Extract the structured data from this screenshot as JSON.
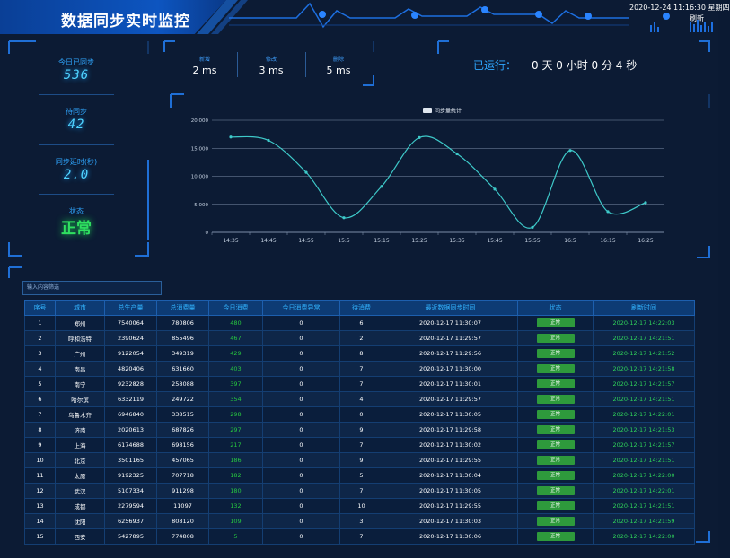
{
  "header": {
    "title": "数据同步实时监控",
    "datetime": "2020-12-24 11:16:30 星期四",
    "refresh_label": "刷新"
  },
  "stats": {
    "synced_today_label": "今日已同步",
    "synced_today_value": "536",
    "pending_label": "待同步",
    "pending_value": "42",
    "delay_label": "同步延时(秒)",
    "delay_value": "2.0",
    "status_label": "状态",
    "status_value": "正常"
  },
  "timing": {
    "items": [
      {
        "label": "新增",
        "value": "2 ms"
      },
      {
        "label": "修改",
        "value": "3 ms"
      },
      {
        "label": "删除",
        "value": "5 ms"
      }
    ]
  },
  "runtime": {
    "label": "已运行：",
    "value": "0 天 0 小时 0 分 4 秒"
  },
  "chart_data": {
    "type": "line",
    "title": "",
    "xlabel": "",
    "ylabel": "",
    "categories": [
      "14:35",
      "14:45",
      "14:55",
      "15:5",
      "15:15",
      "15:25",
      "15:35",
      "15:45",
      "15:55",
      "16:5",
      "16:15",
      "16:25"
    ],
    "ylim": [
      0,
      20000
    ],
    "yticks": [
      "0",
      "5,000",
      "10,000",
      "15,000",
      "20,000"
    ],
    "series": [
      {
        "name": "同步量统计",
        "values": [
          17000,
          16400,
          10700,
          2600,
          8200,
          16900,
          14000,
          7700,
          900,
          14600,
          3700,
          5300
        ]
      }
    ],
    "grid": true,
    "legend": "top-center",
    "colors": {
      "line": "#3ec9c9",
      "grid": "#7c8ea8",
      "axis_text": "#c7d3e3"
    }
  },
  "filter": {
    "placeholder": "输入内容筛选"
  },
  "table": {
    "columns": [
      "序号",
      "城市",
      "总生产量",
      "总消费量",
      "今日消费",
      "今日消费异常",
      "待消费",
      "最近数据同步时间",
      "状态",
      "刷新时间"
    ],
    "rows": [
      [
        "1",
        "郑州",
        "7540064",
        "780806",
        "480",
        "0",
        "6",
        "2020-12-17 11:30:07",
        "正常",
        "2020-12-17 14:22:03"
      ],
      [
        "2",
        "呼和浩特",
        "2390624",
        "855496",
        "467",
        "0",
        "2",
        "2020-12-17 11:29:57",
        "正常",
        "2020-12-17 14:21:51"
      ],
      [
        "3",
        "广州",
        "9122054",
        "349319",
        "429",
        "0",
        "8",
        "2020-12-17 11:29:56",
        "正常",
        "2020-12-17 14:21:52"
      ],
      [
        "4",
        "南昌",
        "4820406",
        "631660",
        "403",
        "0",
        "7",
        "2020-12-17 11:30:00",
        "正常",
        "2020-12-17 14:21:58"
      ],
      [
        "5",
        "南宁",
        "9232828",
        "258088",
        "397",
        "0",
        "7",
        "2020-12-17 11:30:01",
        "正常",
        "2020-12-17 14:21:57"
      ],
      [
        "6",
        "哈尔滨",
        "6332119",
        "249722",
        "354",
        "0",
        "4",
        "2020-12-17 11:29:57",
        "正常",
        "2020-12-17 14:21:51"
      ],
      [
        "7",
        "乌鲁木齐",
        "6946840",
        "338515",
        "298",
        "0",
        "0",
        "2020-12-17 11:30:05",
        "正常",
        "2020-12-17 14:22:01"
      ],
      [
        "8",
        "济南",
        "2020613",
        "687826",
        "297",
        "0",
        "9",
        "2020-12-17 11:29:58",
        "正常",
        "2020-12-17 14:21:53"
      ],
      [
        "9",
        "上海",
        "6174688",
        "698156",
        "217",
        "0",
        "7",
        "2020-12-17 11:30:02",
        "正常",
        "2020-12-17 14:21:57"
      ],
      [
        "10",
        "北京",
        "3501165",
        "457065",
        "186",
        "0",
        "9",
        "2020-12-17 11:29:55",
        "正常",
        "2020-12-17 14:21:51"
      ],
      [
        "11",
        "太原",
        "9192325",
        "707718",
        "182",
        "0",
        "5",
        "2020-12-17 11:30:04",
        "正常",
        "2020-12-17 14:22:00"
      ],
      [
        "12",
        "武汉",
        "5107334",
        "911298",
        "180",
        "0",
        "7",
        "2020-12-17 11:30:05",
        "正常",
        "2020-12-17 14:22:01"
      ],
      [
        "13",
        "成都",
        "2279594",
        "11097",
        "132",
        "0",
        "10",
        "2020-12-17 11:29:55",
        "正常",
        "2020-12-17 14:21:51"
      ],
      [
        "14",
        "沈阳",
        "6256937",
        "808120",
        "109",
        "0",
        "3",
        "2020-12-17 11:30:03",
        "正常",
        "2020-12-17 14:21:59"
      ],
      [
        "15",
        "西安",
        "5427895",
        "774808",
        "5",
        "0",
        "7",
        "2020-12-17 11:30:06",
        "正常",
        "2020-12-17 14:22:00"
      ]
    ]
  }
}
